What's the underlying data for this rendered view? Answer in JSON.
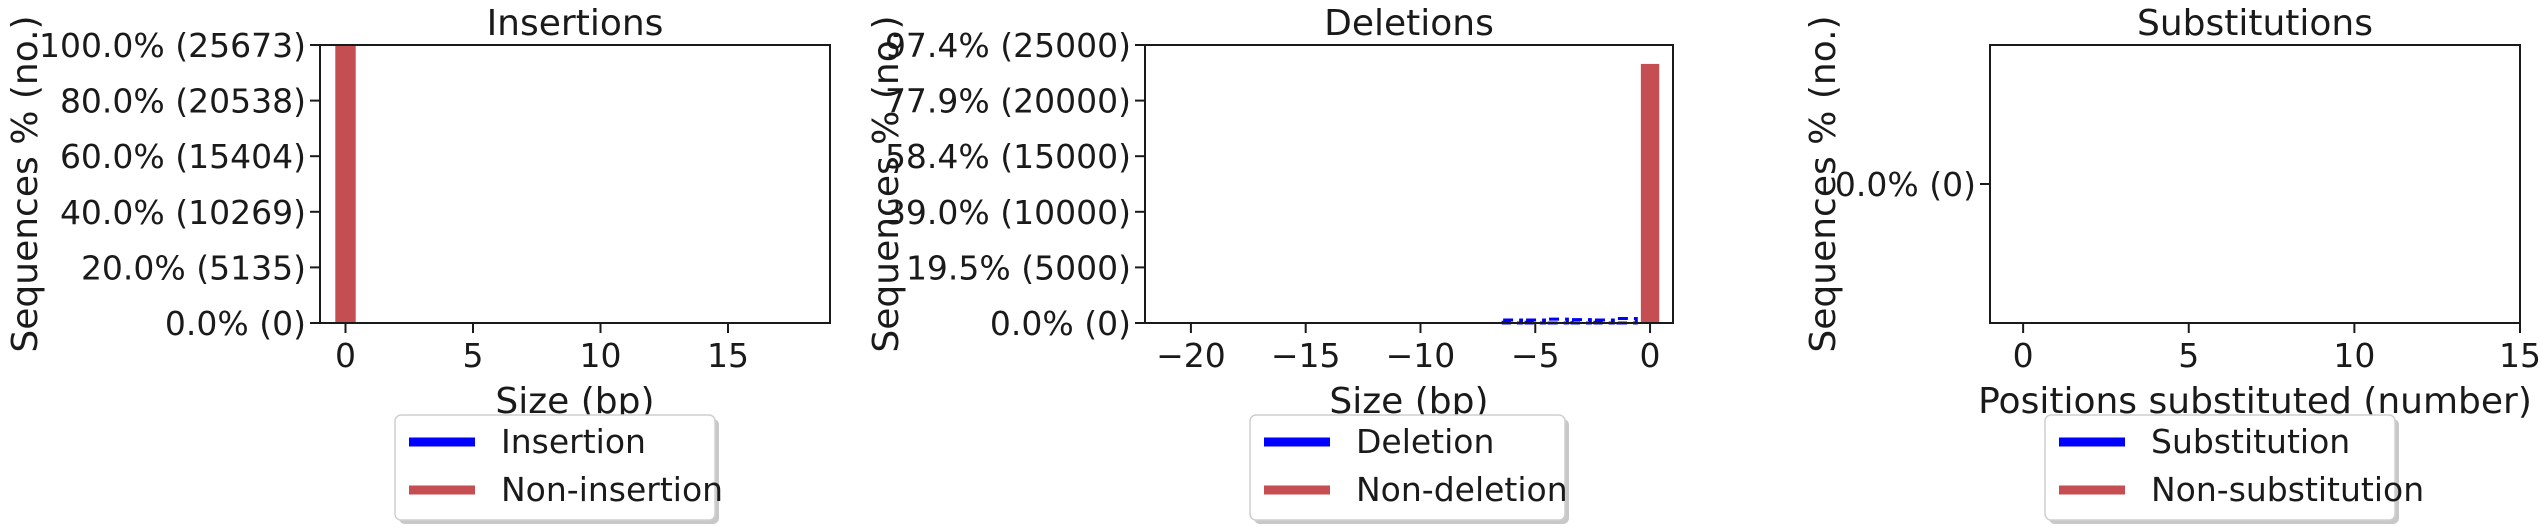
{
  "colors": {
    "indel": "#0000ff",
    "non": "#c44e52",
    "axis": "#1a1a1a"
  },
  "chart_data": [
    {
      "type": "bar",
      "title": "Insertions",
      "xlabel": "Size (bp)",
      "ylabel": "Sequences % (no.)",
      "xlim": [
        -1,
        19
      ],
      "ylim": [
        0,
        25673
      ],
      "xticks": [
        0,
        5,
        10,
        15
      ],
      "xtick_labels": [
        "0",
        "5",
        "10",
        "15"
      ],
      "yticks": [
        0,
        5135,
        10269,
        15404,
        20538,
        25673
      ],
      "ytick_labels": [
        "0.0% (0)",
        "20.0% (5135)",
        "40.0% (10269)",
        "60.0% (15404)",
        "80.0% (20538)",
        "100.0% (25673)"
      ],
      "series": [
        {
          "name": "Insertion",
          "color": "#0000ff",
          "style": "dashed",
          "x": [],
          "values": []
        },
        {
          "name": "Non-insertion",
          "color": "#c44e52",
          "style": "solid",
          "x": [
            0
          ],
          "values": [
            25673
          ]
        }
      ],
      "legend": {
        "placement": "bottom",
        "entries": [
          "Insertion",
          "Non-insertion"
        ]
      }
    },
    {
      "type": "bar",
      "title": "Deletions",
      "xlabel": "Size (bp)",
      "ylabel": "Sequences % (no.)",
      "xlim": [
        -22,
        1
      ],
      "ylim": [
        0,
        25000
      ],
      "xticks": [
        -20,
        -15,
        -10,
        -5,
        0
      ],
      "xtick_labels": [
        "−20",
        "−15",
        "−10",
        "−5",
        "0"
      ],
      "yticks": [
        0,
        5000,
        10000,
        15000,
        20000,
        25000
      ],
      "ytick_labels": [
        "0.0% (0)",
        "19.5% (5000)",
        "39.0% (10000)",
        "58.4% (15000)",
        "77.9% (20000)",
        "97.4% (25000)"
      ],
      "series": [
        {
          "name": "Deletion",
          "color": "#0000ff",
          "style": "dashed",
          "x": [
            -6,
            -5,
            -4,
            -3,
            -2,
            -1
          ],
          "values": [
            120,
            250,
            350,
            300,
            150,
            400
          ]
        },
        {
          "name": "Non-deletion",
          "color": "#c44e52",
          "style": "solid",
          "x": [
            0
          ],
          "values": [
            23300
          ]
        }
      ],
      "legend": {
        "placement": "bottom",
        "entries": [
          "Deletion",
          "Non-deletion"
        ]
      }
    },
    {
      "type": "bar",
      "title": "Substitutions",
      "xlabel": "Positions substituted (number)",
      "ylabel": "Sequences % (no.)",
      "xlim": [
        -1,
        15
      ],
      "ylim": [
        -1,
        1
      ],
      "xticks": [
        0,
        5,
        10,
        15
      ],
      "xtick_labels": [
        "0",
        "5",
        "10",
        "15"
      ],
      "yticks": [
        0
      ],
      "ytick_labels": [
        "0.0% (0)"
      ],
      "series": [
        {
          "name": "Substitution",
          "color": "#0000ff",
          "style": "dashed",
          "x": [],
          "values": []
        },
        {
          "name": "Non-substitution",
          "color": "#c44e52",
          "style": "solid",
          "x": [],
          "values": []
        }
      ],
      "legend": {
        "placement": "bottom",
        "entries": [
          "Substitution",
          "Non-substitution"
        ]
      }
    }
  ]
}
